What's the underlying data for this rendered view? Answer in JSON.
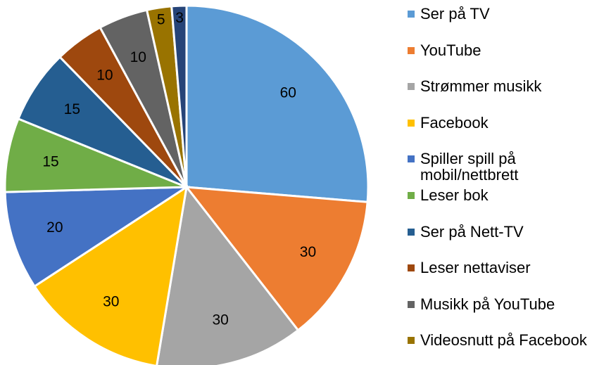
{
  "chart_data": {
    "type": "pie",
    "categories": [
      "Ser på TV",
      "YouTube",
      "Strømmer musikk",
      "Facebook",
      "Spiller spill på mobil/nettbrett",
      "Leser bok",
      "Ser på Nett-TV",
      "Leser nettaviser",
      "Musikk på YouTube",
      "Videosnutt på Facebook",
      null
    ],
    "values": [
      60,
      30,
      30,
      30,
      20,
      15,
      15,
      10,
      10,
      5,
      3
    ],
    "colors": [
      "#5b9bd5",
      "#ed7d31",
      "#a5a5a5",
      "#ffc000",
      "#4472c4",
      "#70ad47",
      "#255e91",
      "#9e480e",
      "#636363",
      "#997300",
      "#264478"
    ],
    "legend": "right"
  }
}
